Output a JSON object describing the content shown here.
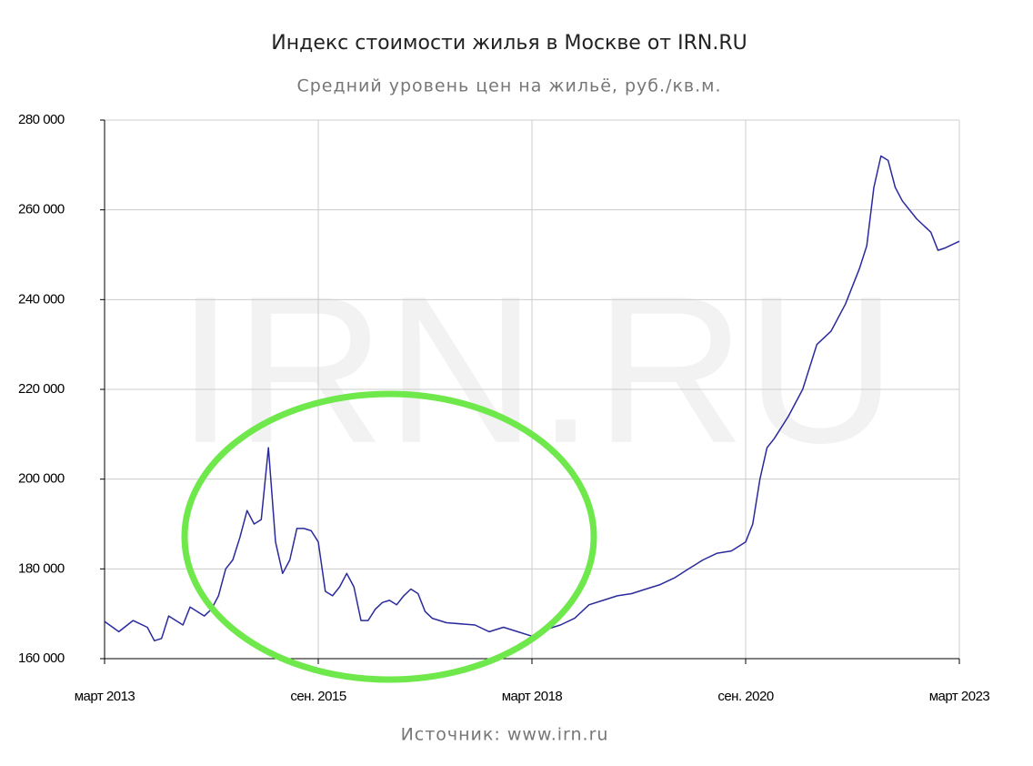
{
  "chart_data": {
    "type": "line",
    "title": "Индекс стоимости жилья в Москве от IRN.RU",
    "subtitle": "Средний уровень цен на жильё, руб./кв.м.",
    "source": "Источник: www.irn.ru",
    "watermark": "IRN.RU",
    "x": [
      "2013-03",
      "2013-05",
      "2013-07",
      "2013-09",
      "2013-10",
      "2013-11",
      "2013-12",
      "2014-02",
      "2014-03",
      "2014-05",
      "2014-06",
      "2014-07",
      "2014-08",
      "2014-09",
      "2014-10",
      "2014-11",
      "2014-12",
      "2015-01",
      "2015-02",
      "2015-03",
      "2015-04",
      "2015-05",
      "2015-06",
      "2015-07",
      "2015-08",
      "2015-09",
      "2015-10",
      "2015-11",
      "2015-12",
      "2016-01",
      "2016-02",
      "2016-03",
      "2016-04",
      "2016-05",
      "2016-06",
      "2016-07",
      "2016-08",
      "2016-09",
      "2016-10",
      "2016-11",
      "2016-12",
      "2017-01",
      "2017-03",
      "2017-07",
      "2017-09",
      "2017-11",
      "2018-01",
      "2018-03",
      "2018-05",
      "2018-07",
      "2018-09",
      "2018-11",
      "2019-01",
      "2019-03",
      "2019-05",
      "2019-07",
      "2019-09",
      "2019-11",
      "2020-01",
      "2020-03",
      "2020-05",
      "2020-07",
      "2020-09",
      "2020-10",
      "2020-11",
      "2020-12",
      "2021-01",
      "2021-03",
      "2021-05",
      "2021-07",
      "2021-09",
      "2021-11",
      "2022-01",
      "2022-02",
      "2022-03",
      "2022-04",
      "2022-05",
      "2022-06",
      "2022-07",
      "2022-09",
      "2022-11",
      "2022-12",
      "2023-01",
      "2023-03"
    ],
    "series": [
      {
        "name": "Индекс стоимости жилья",
        "color": "#2a2a9c",
        "values": [
          168300,
          166000,
          168500,
          167000,
          164000,
          164500,
          169500,
          167500,
          171500,
          169500,
          171000,
          174000,
          180000,
          182000,
          187000,
          193000,
          190000,
          191000,
          207000,
          186000,
          179000,
          182000,
          189000,
          189000,
          188500,
          186000,
          175000,
          174000,
          176000,
          179000,
          176000,
          168500,
          168500,
          171000,
          172500,
          173000,
          172000,
          174000,
          175500,
          174500,
          170500,
          169000,
          168000,
          167500,
          166000,
          167000,
          166000,
          165000,
          166500,
          167500,
          169000,
          172000,
          173000,
          174000,
          174500,
          175500,
          176500,
          178000,
          180000,
          182000,
          183500,
          184000,
          186000,
          190000,
          200000,
          207000,
          209000,
          214000,
          220000,
          230000,
          233000,
          239000,
          247000,
          252000,
          265000,
          272000,
          271000,
          265000,
          262000,
          258000,
          255000,
          251000,
          251500,
          253000
        ]
      }
    ],
    "xlim": [
      "2013-03",
      "2023-03"
    ],
    "xticks": [
      {
        "value": "2013-03",
        "label": "март 2013"
      },
      {
        "value": "2015-09",
        "label": "сен. 2015"
      },
      {
        "value": "2018-03",
        "label": "март 2018"
      },
      {
        "value": "2020-09",
        "label": "сен. 2020"
      },
      {
        "value": "2023-03",
        "label": "март 2023"
      }
    ],
    "ylim": [
      160000,
      280000
    ],
    "yticks": [
      {
        "value": 160000,
        "label": "160 000"
      },
      {
        "value": 180000,
        "label": "180 000"
      },
      {
        "value": 200000,
        "label": "200 000"
      },
      {
        "value": 220000,
        "label": "220 000"
      },
      {
        "value": 240000,
        "label": "240 000"
      },
      {
        "value": 260000,
        "label": "260 000"
      },
      {
        "value": 280000,
        "label": "280 000"
      }
    ],
    "grid": true
  }
}
